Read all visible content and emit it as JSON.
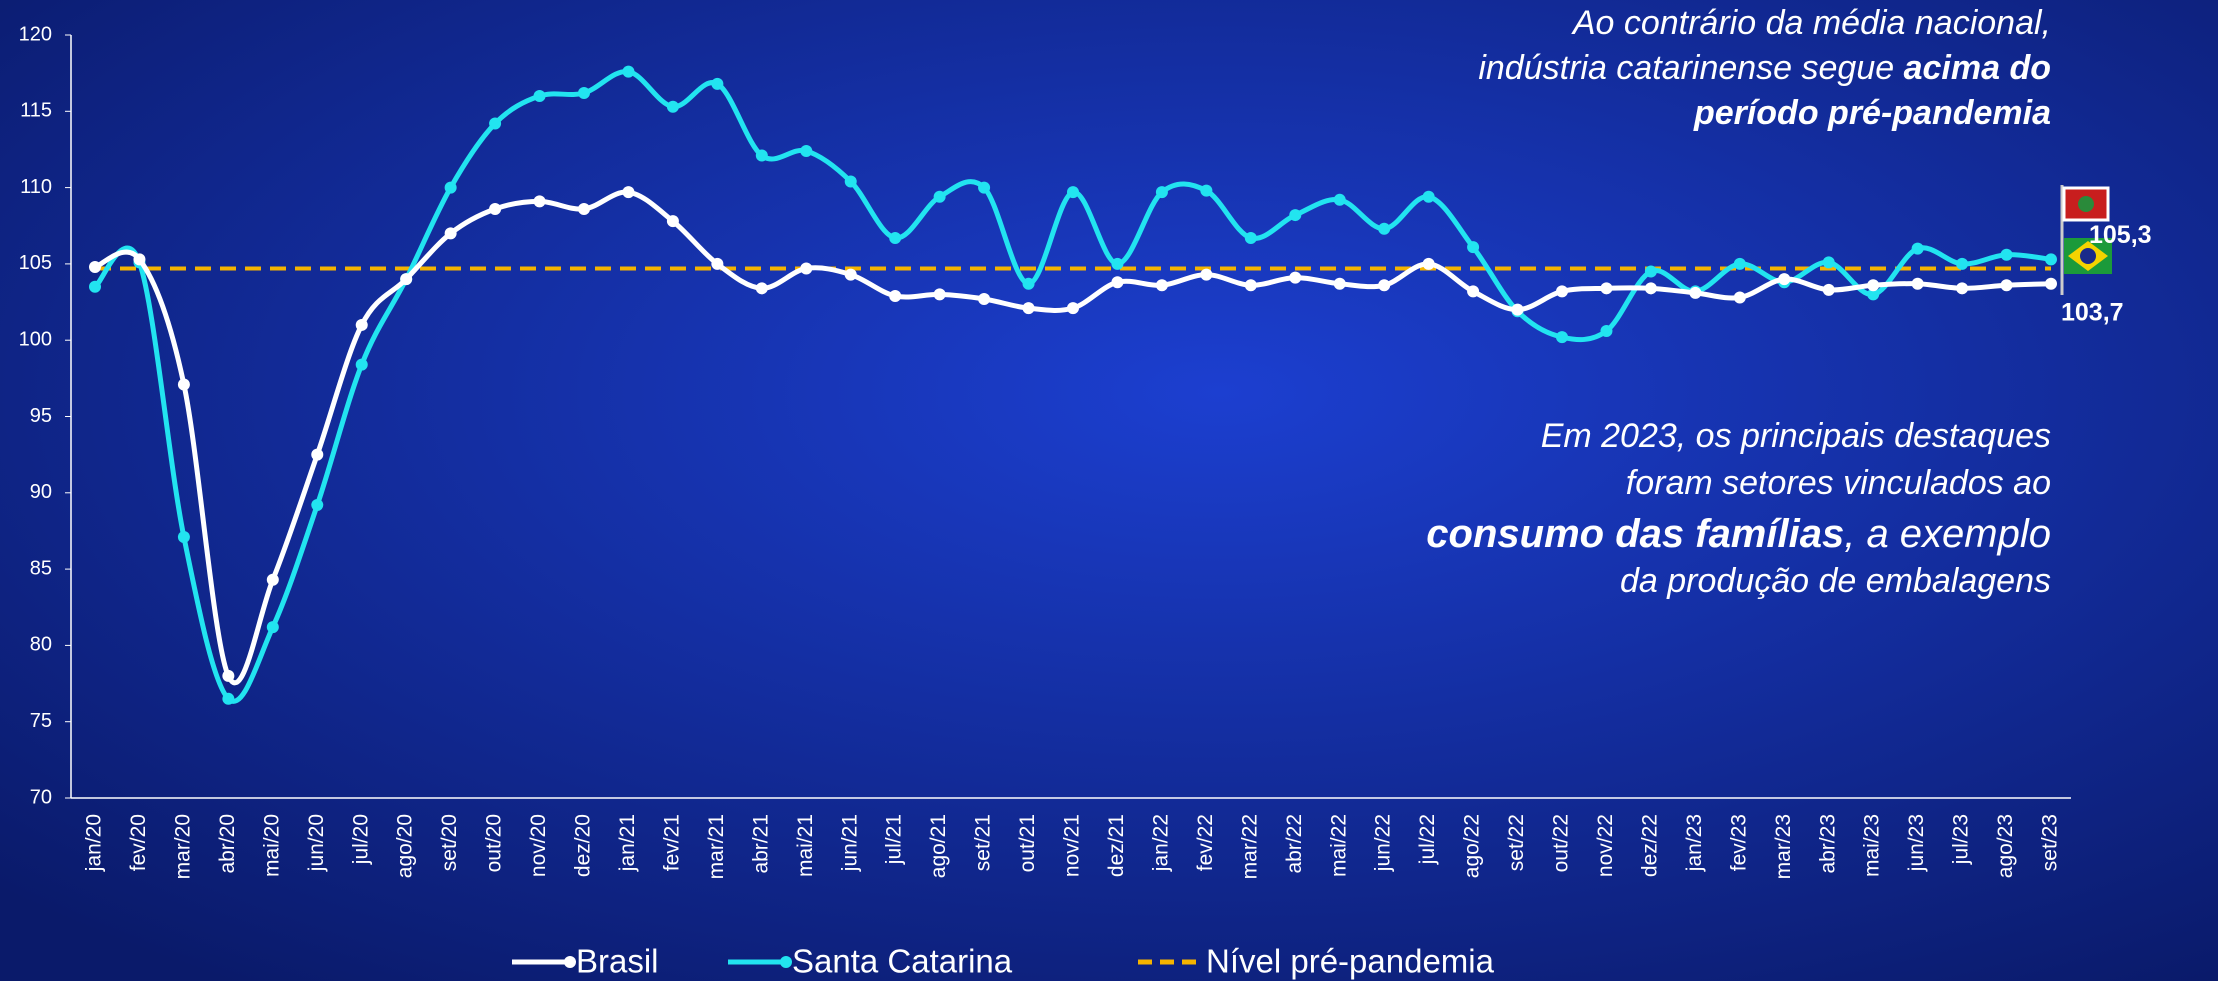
{
  "chart_data": {
    "type": "line",
    "categories": [
      "jan/20",
      "fev/20",
      "mar/20",
      "abr/20",
      "mai/20",
      "jun/20",
      "jul/20",
      "ago/20",
      "set/20",
      "out/20",
      "nov/20",
      "dez/20",
      "jan/21",
      "fev/21",
      "mar/21",
      "abr/21",
      "mai/21",
      "jun/21",
      "jul/21",
      "ago/21",
      "set/21",
      "out/21",
      "nov/21",
      "dez/21",
      "jan/22",
      "fev/22",
      "mar/22",
      "abr/22",
      "mai/22",
      "jun/22",
      "jul/22",
      "ago/22",
      "set/22",
      "out/22",
      "nov/22",
      "dez/22",
      "jan/23",
      "fev/23",
      "mar/23",
      "abr/23",
      "mai/23",
      "jun/23",
      "jul/23",
      "ago/23",
      "set/23"
    ],
    "series": [
      {
        "name": "Brasil",
        "color": "#ffffff",
        "values": [
          104.8,
          105.3,
          97.1,
          78.0,
          84.3,
          92.5,
          101.0,
          104.0,
          107.0,
          108.6,
          109.1,
          108.6,
          109.7,
          107.8,
          105.0,
          103.4,
          104.7,
          104.3,
          102.9,
          103.0,
          102.7,
          102.1,
          102.1,
          103.8,
          103.6,
          104.3,
          103.6,
          104.1,
          103.7,
          103.6,
          105.0,
          103.2,
          102.0,
          103.2,
          103.4,
          103.4,
          103.1,
          102.8,
          104.0,
          103.3,
          103.6,
          103.7,
          103.4,
          103.6,
          103.7
        ],
        "value_labels": [
          null,
          null,
          null,
          null,
          null,
          null,
          null,
          null,
          null,
          null,
          null,
          null,
          null,
          null,
          null,
          null,
          null,
          null,
          null,
          null,
          null,
          null,
          null,
          null,
          null,
          null,
          null,
          null,
          null,
          null,
          null,
          null,
          null,
          null,
          null,
          null,
          null,
          null,
          null,
          null,
          null,
          null,
          null,
          null,
          "103,7"
        ]
      },
      {
        "name": "Santa Catarina",
        "color": "#22e4f0",
        "values": [
          103.5,
          105.1,
          87.1,
          76.5,
          81.2,
          89.2,
          98.4,
          104.0,
          110.0,
          114.2,
          116.0,
          116.2,
          117.6,
          115.3,
          116.8,
          112.1,
          112.4,
          110.4,
          106.7,
          109.4,
          110.0,
          103.7,
          109.7,
          105.0,
          109.7,
          109.8,
          106.7,
          108.2,
          109.2,
          107.3,
          109.4,
          106.1,
          101.9,
          100.2,
          100.6,
          104.5,
          103.2,
          105.0,
          103.8,
          105.1,
          103.0,
          106.0,
          105.0,
          105.6,
          105.3
        ],
        "value_labels": [
          null,
          null,
          null,
          null,
          null,
          null,
          null,
          null,
          null,
          null,
          null,
          null,
          null,
          null,
          null,
          null,
          null,
          null,
          null,
          null,
          null,
          null,
          null,
          null,
          null,
          null,
          null,
          null,
          null,
          null,
          null,
          null,
          null,
          null,
          null,
          null,
          null,
          null,
          null,
          null,
          null,
          null,
          null,
          null,
          "105,3"
        ]
      }
    ],
    "reference_lines": [
      {
        "name": "Nível pré-pandemia",
        "value": 104.7,
        "color": "#f5b400"
      }
    ],
    "ylim": [
      70,
      120
    ],
    "yticks": [
      70,
      75,
      80,
      85,
      90,
      95,
      100,
      105,
      110,
      115,
      120
    ],
    "annotations": [
      [
        [
          {
            "text": "Ao contrário da média nacional,",
            "bold": false
          }
        ],
        [
          {
            "text": "indústria catarinense segue ",
            "bold": false
          },
          {
            "text": "acima do",
            "bold": true
          }
        ],
        [
          {
            "text": "período pré-pandemia",
            "bold": true
          }
        ]
      ],
      [
        [
          {
            "text": "Em 2023, os principais destaques",
            "bold": false
          }
        ],
        [
          {
            "text": "foram setores vinculados ao",
            "bold": false
          }
        ],
        [
          {
            "text": "consumo das famílias",
            "bold": true
          },
          {
            "text": ", a exemplo",
            "bold": false
          }
        ],
        [
          {
            "text": "da produção de embalagens",
            "bold": false
          }
        ]
      ]
    ]
  }
}
